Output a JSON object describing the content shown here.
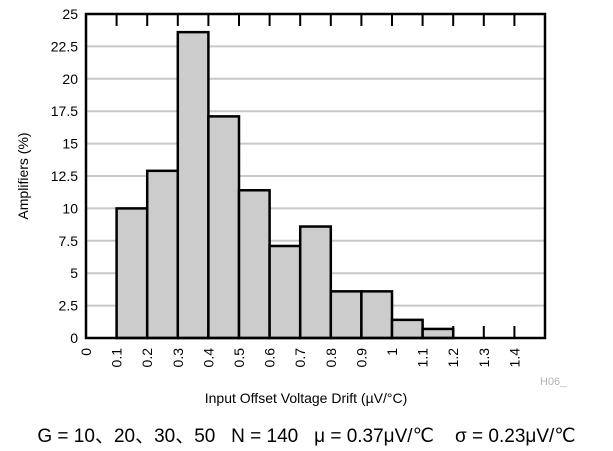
{
  "chart_data": {
    "type": "bar",
    "xlabel": "Input Offset Voltage Drift (µV/°C)",
    "ylabel": "Amplifiers (%)",
    "ylim": [
      0,
      25
    ],
    "yticks": [
      "0",
      "2.5",
      "5",
      "7.5",
      "10",
      "12.5",
      "15",
      "17.5",
      "20",
      "22.5",
      "25"
    ],
    "xticks": [
      "0",
      "0.1",
      "0.2",
      "0.3",
      "0.4",
      "0.5",
      "0.6",
      "0.7",
      "0.8",
      "0.9",
      "1",
      "1.1",
      "1.2",
      "1.3",
      "1.4"
    ],
    "bins": [
      {
        "from": 0.1,
        "to": 0.2,
        "value": 10.0
      },
      {
        "from": 0.2,
        "to": 0.3,
        "value": 12.9
      },
      {
        "from": 0.3,
        "to": 0.4,
        "value": 23.6
      },
      {
        "from": 0.4,
        "to": 0.5,
        "value": 17.1
      },
      {
        "from": 0.5,
        "to": 0.6,
        "value": 11.4
      },
      {
        "from": 0.6,
        "to": 0.7,
        "value": 7.1
      },
      {
        "from": 0.7,
        "to": 0.8,
        "value": 8.6
      },
      {
        "from": 0.8,
        "to": 0.9,
        "value": 3.6
      },
      {
        "from": 0.9,
        "to": 1.0,
        "value": 3.6
      },
      {
        "from": 1.0,
        "to": 1.1,
        "value": 1.4
      },
      {
        "from": 1.1,
        "to": 1.2,
        "value": 0.7
      }
    ],
    "grid": "horizontal",
    "bar_color": "#cccccc",
    "grid_color": "#c8c8c8"
  },
  "watermark": "H06_",
  "caption": "G = 10、20、30、50   N = 140   μ = 0.37μV/℃    σ = 0.23μV/℃"
}
